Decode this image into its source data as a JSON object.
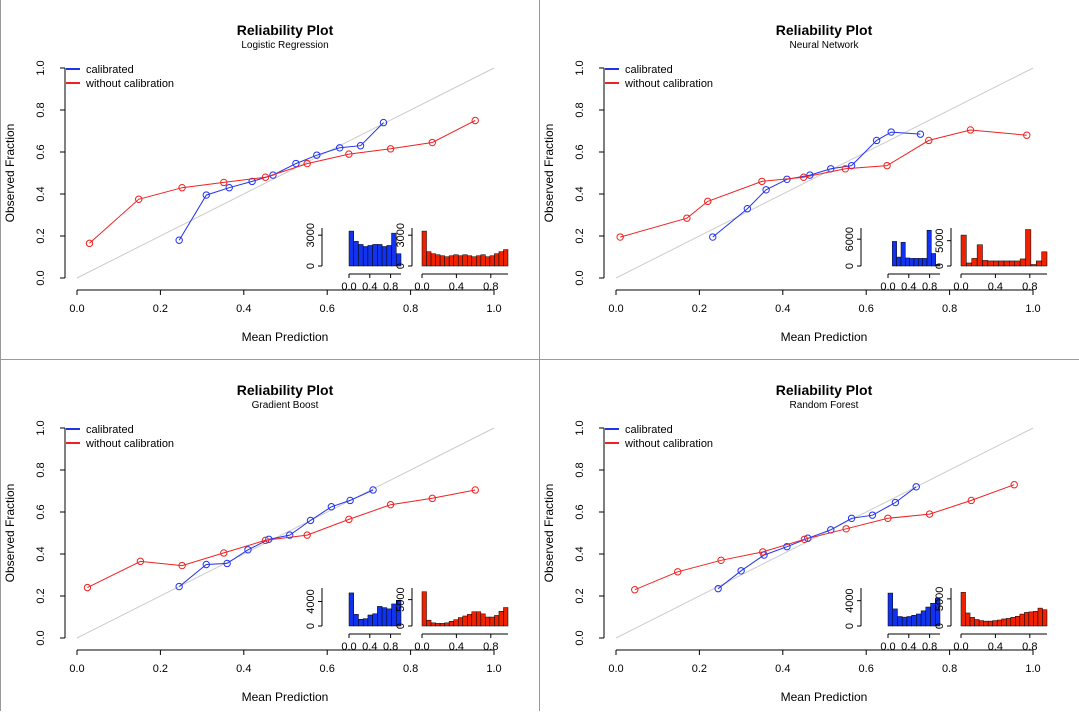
{
  "layout_note": "",
  "colors": {
    "calibrated": "#2233ee",
    "uncalibrated": "#ee2222",
    "diagonal": "#cccccc",
    "hist_blue": "#1133ee",
    "hist_red": "#ee2200"
  },
  "chart_data": [
    {
      "type": "line",
      "title": "Reliability Plot",
      "subtitle": "Logistic Regression",
      "xlabel": "Mean Prediction",
      "ylabel": "Observed Fraction",
      "xlim": [
        0,
        1
      ],
      "ylim": [
        0,
        1
      ],
      "x_ticks": [
        "0.0",
        "0.2",
        "0.4",
        "0.6",
        "0.8",
        "1.0"
      ],
      "y_ticks": [
        "0.0",
        "0.2",
        "0.4",
        "0.6",
        "0.8",
        "1.0"
      ],
      "legend": [
        "calibrated",
        "without calibration"
      ],
      "legend_position": "top-left",
      "series": [
        {
          "name": "calibrated",
          "x": [
            0.245,
            0.31,
            0.365,
            0.42,
            0.47,
            0.525,
            0.575,
            0.63,
            0.68,
            0.735
          ],
          "y": [
            0.18,
            0.395,
            0.43,
            0.46,
            0.49,
            0.545,
            0.585,
            0.62,
            0.63,
            0.74
          ]
        },
        {
          "name": "without calibration",
          "x": [
            0.03,
            0.148,
            0.252,
            0.352,
            0.452,
            0.552,
            0.652,
            0.752,
            0.852,
            0.955
          ],
          "y": [
            0.165,
            0.375,
            0.43,
            0.455,
            0.48,
            0.545,
            0.59,
            0.615,
            0.645,
            0.75
          ]
        }
      ],
      "hist_calibrated": {
        "x_ticks": [
          "0.0",
          "0.4",
          "0.8"
        ],
        "y_ticks": [
          "0",
          "3000"
        ],
        "ymax": 3700,
        "values": [
          3400,
          2400,
          2100,
          1900,
          2000,
          2100,
          2100,
          1900,
          2000,
          3200,
          1200
        ]
      },
      "hist_uncalibrated": {
        "x_ticks": [
          "0.0",
          "0.4",
          "0.8"
        ],
        "y_ticks": [
          "0",
          "3000"
        ],
        "ymax": 3700,
        "values": [
          3400,
          1400,
          1200,
          1100,
          1000,
          900,
          1000,
          1100,
          1000,
          1100,
          1000,
          900,
          1000,
          1100,
          900,
          1000,
          1200,
          1400,
          1600
        ]
      }
    },
    {
      "type": "line",
      "title": "Reliability Plot",
      "subtitle": "Neural Network",
      "xlabel": "Mean Prediction",
      "ylabel": "Observed Fraction",
      "xlim": [
        0,
        1
      ],
      "ylim": [
        0,
        1
      ],
      "x_ticks": [
        "0.0",
        "0.2",
        "0.4",
        "0.6",
        "0.8",
        "1.0"
      ],
      "y_ticks": [
        "0.0",
        "0.2",
        "0.4",
        "0.6",
        "0.8",
        "1.0"
      ],
      "legend": [
        "calibrated",
        "without calibration"
      ],
      "legend_position": "top-left",
      "series": [
        {
          "name": "calibrated",
          "x": [
            0.232,
            0.315,
            0.36,
            0.41,
            0.465,
            0.515,
            0.565,
            0.625,
            0.66,
            0.73
          ],
          "y": [
            0.195,
            0.33,
            0.42,
            0.47,
            0.49,
            0.52,
            0.535,
            0.655,
            0.695,
            0.685
          ]
        },
        {
          "name": "without calibration",
          "x": [
            0.01,
            0.17,
            0.22,
            0.35,
            0.45,
            0.55,
            0.65,
            0.75,
            0.85,
            0.985
          ],
          "y": [
            0.195,
            0.285,
            0.365,
            0.46,
            0.48,
            0.52,
            0.535,
            0.655,
            0.705,
            0.68
          ]
        }
      ],
      "hist_calibrated": {
        "x_ticks": [
          "0.0",
          "0.4",
          "0.8"
        ],
        "y_ticks": [
          "0",
          "6000"
        ],
        "ymax": 8500,
        "values": [
          0,
          5500,
          2000,
          5300,
          1800,
          1700,
          1700,
          1700,
          1700,
          8000,
          2800,
          300
        ]
      },
      "hist_uncalibrated": {
        "x_ticks": [
          "0.0",
          "0.4",
          "0.8"
        ],
        "y_ticks": [
          "0",
          "5000"
        ],
        "ymax": 7500,
        "values": [
          6100,
          600,
          1500,
          4200,
          1100,
          1000,
          1000,
          1000,
          1000,
          1000,
          1000,
          1400,
          7200,
          300,
          1000,
          2800
        ]
      }
    },
    {
      "type": "line",
      "title": "Reliability Plot",
      "subtitle": "Gradient Boost",
      "xlabel": "Mean Prediction",
      "ylabel": "Observed Fraction",
      "xlim": [
        0,
        1
      ],
      "ylim": [
        0,
        1
      ],
      "x_ticks": [
        "0.0",
        "0.2",
        "0.4",
        "0.6",
        "0.8",
        "1.0"
      ],
      "y_ticks": [
        "0.0",
        "0.2",
        "0.4",
        "0.6",
        "0.8",
        "1.0"
      ],
      "legend": [
        "calibrated",
        "without calibration"
      ],
      "legend_position": "top-left",
      "series": [
        {
          "name": "calibrated",
          "x": [
            0.245,
            0.31,
            0.36,
            0.41,
            0.46,
            0.51,
            0.56,
            0.61,
            0.655,
            0.71
          ],
          "y": [
            0.245,
            0.35,
            0.355,
            0.42,
            0.47,
            0.49,
            0.56,
            0.625,
            0.655,
            0.705
          ]
        },
        {
          "name": "without calibration",
          "x": [
            0.025,
            0.152,
            0.252,
            0.352,
            0.452,
            0.552,
            0.652,
            0.752,
            0.852,
            0.955
          ],
          "y": [
            0.24,
            0.365,
            0.345,
            0.405,
            0.465,
            0.49,
            0.565,
            0.635,
            0.665,
            0.705
          ]
        }
      ],
      "hist_calibrated": {
        "x_ticks": [
          "0.0",
          "0.4",
          "0.8"
        ],
        "y_ticks": [
          "0",
          "4000"
        ],
        "ymax": 6200,
        "values": [
          5400,
          1900,
          1100,
          1200,
          1800,
          2000,
          3200,
          3000,
          2800,
          3600,
          4200
        ]
      },
      "hist_uncalibrated": {
        "x_ticks": [
          "0.0",
          "0.4",
          "0.8"
        ],
        "y_ticks": [
          "0",
          "5000"
        ],
        "ymax": 7200,
        "values": [
          6500,
          1100,
          600,
          500,
          500,
          600,
          900,
          1200,
          1600,
          1900,
          2200,
          2700,
          2700,
          2300,
          1700,
          1700,
          2000,
          2800,
          3500
        ]
      }
    },
    {
      "type": "line",
      "title": "Reliability Plot",
      "subtitle": "Random Forest",
      "xlabel": "Mean Prediction",
      "ylabel": "Observed Fraction",
      "xlim": [
        0,
        1
      ],
      "ylim": [
        0,
        1
      ],
      "x_ticks": [
        "0.0",
        "0.2",
        "0.4",
        "0.6",
        "0.8",
        "1.0"
      ],
      "y_ticks": [
        "0.0",
        "0.2",
        "0.4",
        "0.6",
        "0.8",
        "1.0"
      ],
      "legend": [
        "calibrated",
        "without calibration"
      ],
      "legend_position": "top-left",
      "series": [
        {
          "name": "calibrated",
          "x": [
            0.245,
            0.3,
            0.355,
            0.41,
            0.46,
            0.515,
            0.565,
            0.615,
            0.67,
            0.72
          ],
          "y": [
            0.235,
            0.32,
            0.395,
            0.435,
            0.475,
            0.515,
            0.57,
            0.585,
            0.645,
            0.72
          ]
        },
        {
          "name": "without calibration",
          "x": [
            0.045,
            0.148,
            0.252,
            0.352,
            0.452,
            0.552,
            0.652,
            0.752,
            0.852,
            0.955
          ],
          "y": [
            0.23,
            0.315,
            0.37,
            0.41,
            0.47,
            0.52,
            0.57,
            0.59,
            0.655,
            0.73
          ]
        }
      ],
      "hist_calibrated": {
        "x_ticks": [
          "0.0",
          "0.4",
          "0.8"
        ],
        "y_ticks": [
          "0",
          "4000"
        ],
        "ymax": 6000,
        "values": [
          5200,
          2700,
          1500,
          1400,
          1500,
          1700,
          1900,
          2400,
          3000,
          3600,
          4400
        ]
      },
      "hist_uncalibrated": {
        "x_ticks": [
          "0.0",
          "0.4",
          "0.8"
        ],
        "y_ticks": [
          "0",
          "5000"
        ],
        "ymax": 7000,
        "values": [
          6200,
          2400,
          1600,
          1200,
          1000,
          900,
          900,
          1000,
          1100,
          1300,
          1400,
          1600,
          1800,
          2200,
          2500,
          2600,
          2700,
          3300,
          3000
        ]
      }
    }
  ]
}
